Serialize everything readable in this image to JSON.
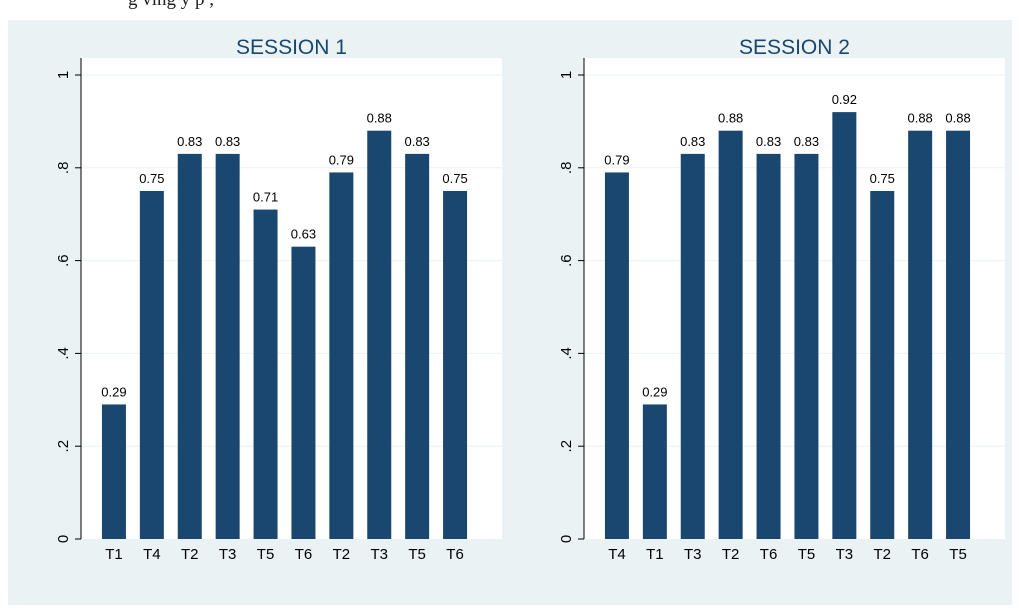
{
  "caption_fragment": "g        ving                     y p          ,",
  "chart_data": [
    {
      "type": "bar",
      "title": "SESSION 1",
      "categories": [
        "T1",
        "T4",
        "T2",
        "T3",
        "T5",
        "T6",
        "T2",
        "T3",
        "T5",
        "T6"
      ],
      "values": [
        0.29,
        0.75,
        0.83,
        0.83,
        0.71,
        0.63,
        0.79,
        0.88,
        0.83,
        0.75
      ],
      "data_labels": [
        "0.29",
        "0.75",
        "0.83",
        "0.83",
        "0.71",
        "0.63",
        "0.79",
        "0.88",
        "0.83",
        "0.75"
      ],
      "ylim": [
        0,
        1
      ],
      "yticks": [
        0,
        0.2,
        0.4,
        0.6,
        0.8,
        1
      ],
      "ytick_labels": [
        "0",
        ".2",
        ".4",
        ".6",
        ".8",
        "1"
      ],
      "grid": true,
      "bar_color": "#1a476f"
    },
    {
      "type": "bar",
      "title": "SESSION 2",
      "categories": [
        "T4",
        "T1",
        "T3",
        "T2",
        "T6",
        "T5",
        "T3",
        "T2",
        "T6",
        "T5"
      ],
      "values": [
        0.79,
        0.29,
        0.83,
        0.88,
        0.83,
        0.83,
        0.92,
        0.75,
        0.88,
        0.88
      ],
      "data_labels": [
        "0.79",
        "0.29",
        "0.83",
        "0.88",
        "0.83",
        "0.83",
        "0.92",
        "0.75",
        "0.88",
        "0.88"
      ],
      "ylim": [
        0,
        1
      ],
      "yticks": [
        0,
        0.2,
        0.4,
        0.6,
        0.8,
        1
      ],
      "ytick_labels": [
        "0",
        ".2",
        ".4",
        ".6",
        ".8",
        "1"
      ],
      "grid": true,
      "bar_color": "#1a476f"
    }
  ],
  "colors": {
    "background": "#eaf2f3",
    "plot_area": "#ffffff",
    "title": "#1a476f",
    "grid": "#eaf2f3"
  }
}
